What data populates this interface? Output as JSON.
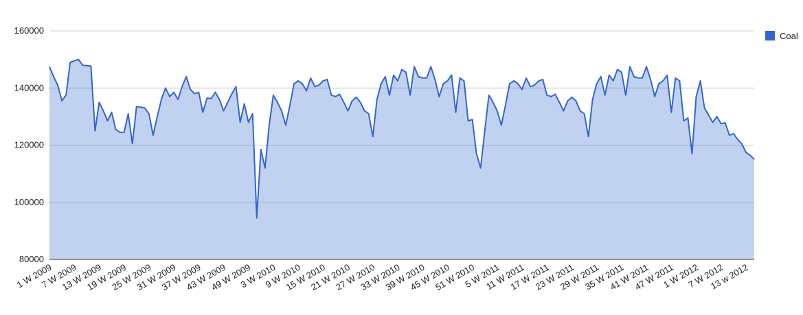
{
  "chart_data": {
    "type": "area",
    "categories": [
      "1 W 2009",
      null,
      null,
      null,
      null,
      null,
      "7 W 2009",
      null,
      null,
      null,
      null,
      null,
      "13 W 2009",
      null,
      null,
      null,
      null,
      null,
      "19 W 2009",
      null,
      null,
      null,
      null,
      null,
      "25 W 2009",
      null,
      null,
      null,
      null,
      null,
      "31 W 2009",
      null,
      null,
      null,
      null,
      null,
      "37 W 2009",
      null,
      null,
      null,
      null,
      null,
      "43 W 2009",
      null,
      null,
      null,
      null,
      null,
      "49 W 2009",
      null,
      null,
      null,
      null,
      null,
      "3 W 2010",
      null,
      null,
      null,
      null,
      null,
      "9 W 2010",
      null,
      null,
      null,
      null,
      null,
      "15 W 2010",
      null,
      null,
      null,
      null,
      null,
      "21 W 2010",
      null,
      null,
      null,
      null,
      null,
      "27 W 2010",
      null,
      null,
      null,
      null,
      null,
      "33 W 2010",
      null,
      null,
      null,
      null,
      null,
      "39 W 2010",
      null,
      null,
      null,
      null,
      null,
      "45 W 2010",
      null,
      null,
      null,
      null,
      null,
      "51 W 2010",
      null,
      null,
      null,
      null,
      null,
      "5 W 2011",
      null,
      null,
      null,
      null,
      null,
      "11 W 2011",
      null,
      null,
      null,
      null,
      null,
      "17 W 2011",
      null,
      null,
      null,
      null,
      null,
      "23 W 2011",
      null,
      null,
      null,
      null,
      null,
      "29 W 2011",
      null,
      null,
      null,
      null,
      null,
      "35 W 2011",
      null,
      null,
      null,
      null,
      null,
      "41 W 2011",
      null,
      null,
      null,
      null,
      null,
      "47 W 2011",
      null,
      null,
      null,
      null,
      null,
      "1 W 2012",
      null,
      null,
      null,
      null,
      null,
      "7 W 2012",
      null,
      null,
      null,
      null,
      null,
      "13 w 2012",
      null,
      null
    ],
    "series": [
      {
        "name": "Coal",
        "color": "#3366cc",
        "values": [
          147500,
          144000,
          141000,
          135500,
          137500,
          149000,
          149500,
          150000,
          148000,
          147800,
          147700,
          125000,
          135000,
          132000,
          128500,
          131500,
          125500,
          124500,
          124500,
          131000,
          120500,
          133500,
          133300,
          133000,
          131000,
          123500,
          130000,
          136000,
          140000,
          137000,
          138500,
          136000,
          140500,
          144000,
          139500,
          138000,
          138500,
          131500,
          136500,
          136300,
          138500,
          136000,
          132000,
          135000,
          138000,
          140500,
          128000,
          134500,
          128000,
          131000,
          94500,
          118500,
          112000,
          127000,
          137500,
          135000,
          132000,
          127000,
          134000,
          141500,
          142500,
          141500,
          139000,
          143500,
          140500,
          141000,
          142500,
          143000,
          137500,
          137000,
          137800,
          135000,
          132000,
          135500,
          136800,
          135000,
          132000,
          131000,
          123000,
          136000,
          141500,
          144000,
          137500,
          144500,
          142500,
          146500,
          145500,
          137500,
          147500,
          144000,
          143500,
          143500,
          147500,
          143000,
          137000,
          141500,
          142500,
          144500,
          131500,
          143500,
          142500,
          128500,
          129000,
          117000,
          112000,
          125000,
          137500,
          135000,
          132000,
          127000,
          134000,
          141500,
          142500,
          141500,
          139500,
          143500,
          140500,
          141000,
          142500,
          143000,
          137500,
          137000,
          137800,
          135000,
          132000,
          135500,
          136800,
          135500,
          132000,
          131000,
          123000,
          136000,
          141500,
          144000,
          137500,
          144500,
          142500,
          146500,
          145500,
          137500,
          147500,
          144000,
          143500,
          143500,
          147500,
          143000,
          137000,
          141500,
          142500,
          144500,
          131500,
          143500,
          142500,
          128500,
          129500,
          117000,
          137000,
          142500,
          133000,
          130500,
          128000,
          130000,
          127500,
          127800,
          123500,
          124000,
          122000,
          120500,
          117500,
          116500,
          115000
        ]
      }
    ],
    "ylim": [
      80000,
      160000
    ],
    "yticks": [
      80000,
      100000,
      120000,
      140000,
      160000
    ],
    "grid": true,
    "legend": "right"
  }
}
